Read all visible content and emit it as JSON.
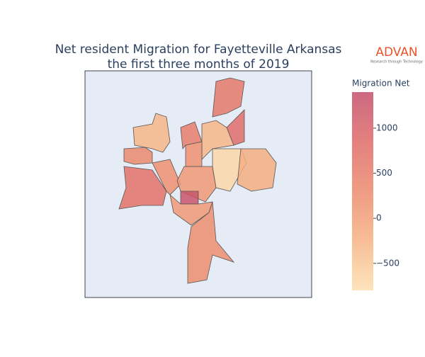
{
  "chart_data": {
    "type": "choropleth",
    "title": "Net resident Migration for Fayetteville Arkansas",
    "subtitle": "the first three months of 2019",
    "logo": "ADVAN",
    "logo_tagline": "Research through Technology",
    "colorbar_title": "Migration Net",
    "values": [
      700,
      -300,
      300,
      200,
      500,
      600,
      800,
      -700,
      -200,
      100,
      1300,
      100,
      250,
      -300,
      200
    ],
    "colorscale": [
      "#fde0b0",
      "#f6b283",
      "#ec8a6d",
      "#e06a68",
      "#c44e6b"
    ],
    "clim": [
      -800,
      1400
    ],
    "cticks": [
      {
        "value": -500,
        "label": "−500"
      },
      0,
      500,
      1000
    ]
  }
}
